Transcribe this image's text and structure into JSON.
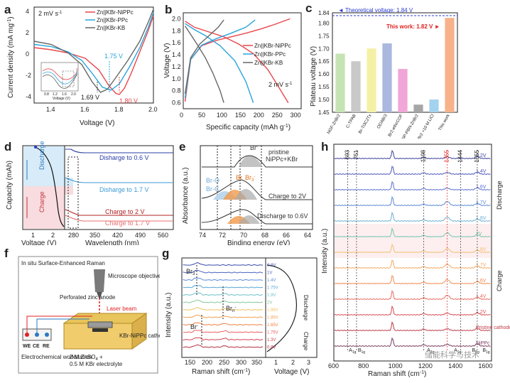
{
  "panels": {
    "a": {
      "label": "a",
      "scan_rate": "2 mV s",
      "scan_rate_exp": "-1",
      "legend": [
        "Zn||KBr-NiPPc",
        "Zn||KBr-PPc",
        "Zn||KBr-KB"
      ],
      "xlabel": "Voltage (V)",
      "ylabel": "Current density (mA mg",
      "ylabel_exp": "-1",
      "x_ticks": [
        "1.4",
        "1.6",
        "1.8",
        "2.0"
      ],
      "y_ticks": [
        "4",
        "2",
        "0",
        "-2",
        "-4"
      ],
      "peak_labels": [
        "1.69 V",
        "1.75 V",
        "1.80 V"
      ],
      "inset_x_ticks": [
        "0.8",
        "1.2",
        "1.6",
        "2.0"
      ],
      "inset_xlabel": "Voltage (V)"
    },
    "b": {
      "label": "b",
      "legend": [
        "Zn||KBr-NiPPc",
        "Zn||KBr-PPc",
        "Zn||KBr-KB"
      ],
      "scan_rate": "2 mV s",
      "scan_rate_exp": "-1",
      "xlabel": "Specific capacity (mAh g",
      "xlabel_exp": "-1",
      "ylabel": "Voltage (V)",
      "x_ticks": [
        "0",
        "50",
        "100",
        "150",
        "200",
        "250",
        "300"
      ],
      "y_ticks": [
        "2.0",
        "1.8",
        "1.6",
        "1.4",
        "1.2",
        "1.0",
        "0.8",
        "0.6"
      ]
    },
    "c": {
      "label": "c",
      "theoretical": "Theoretical voltage: 1.84 V",
      "this_work_label": "This work: 1.82 V",
      "ylabel": "Plateau voltage (V)",
      "y_ticks": [
        "1.84",
        "1.80",
        "1.75",
        "1.70",
        "1.65",
        "1.60",
        "1.55",
        "1.50",
        "1.45"
      ]
    },
    "d": {
      "label": "d",
      "ylabel": "Capacity (mAh)",
      "discharge": "Discharge",
      "charge": "Charge",
      "xlabel_left": "Voltage (V)",
      "xlabel_right": "Wavelength (nm)",
      "x_ticks_left": [
        "1",
        "2"
      ],
      "x_ticks_right": [
        "280",
        "350",
        "420",
        "490",
        "560"
      ],
      "curve_labels": [
        "Disharge to 0.6 V",
        "Disharge to 1.7 V",
        "Charge to 2 V",
        "Charge to 1.7 V"
      ]
    },
    "e": {
      "label": "e",
      "ylabel": "Absorbance (a.u.)",
      "xlabel": "Binding energy (eV)",
      "x_ticks": [
        "74",
        "72",
        "70",
        "68",
        "66",
        "64"
      ],
      "labels": [
        "Br",
        "pristine",
        "NiPPc+KBr",
        "Br-O",
        "Br-C",
        "Br",
        "Br",
        "Charge to 2V",
        "Discharge to 0.6V"
      ],
      "label_sub": [
        "",
        "",
        "",
        "",
        "",
        "",
        "3",
        "",
        ""
      ],
      "label_sup": [
        "-",
        "",
        "",
        "",
        "",
        "",
        "-",
        "",
        ""
      ]
    },
    "f": {
      "label": "f",
      "title": "In situ Surface-Enhanced Raman",
      "microscope": "Microscope objective",
      "perforated": "Perforated zinc anode",
      "laser": "Laser beam",
      "electrodes": [
        "WE",
        "CE",
        "RE"
      ],
      "workstation": "Electrochemical workstation",
      "cathode": "KBr-NiPPc cathode",
      "electrolyte_1": "2 M ZnSO",
      "electrolyte_1_sub": "4",
      "electrolyte_1_tail": " +",
      "electrolyte_2": "0.5 M KBr electrolyte"
    },
    "g": {
      "label": "g",
      "ylabel": "Intensity (a.u.)",
      "xlabel": "Raman shift (cm",
      "xlabel_exp": "-1",
      "xlabel_right": "Voltage (V)",
      "x_ticks": [
        "150",
        "200",
        "250",
        "300",
        "350"
      ],
      "x_ticks_right": [
        "1",
        "2",
        "3"
      ],
      "species": [
        "Br",
        "Br",
        "Br"
      ],
      "species_sub": [
        "3",
        "n",
        ""
      ],
      "species_sup": [
        "-",
        "-",
        "-"
      ],
      "voltages": [
        "0.8V",
        "1V",
        "1.4V",
        "1.75V",
        "1.9V",
        "2V",
        "1.95V",
        "1.85V",
        "1.65V",
        "1.75V",
        "1.3V",
        "0.8V"
      ],
      "discharge": "Discharge",
      "charge": "Charge"
    },
    "h": {
      "label": "h",
      "ylabel": "Intensity (a.u.)",
      "xlabel": "Raman shift (cm",
      "xlabel_exp": "-1",
      "x_ticks": [
        "600",
        "800",
        "1000",
        "1200",
        "1400",
        "1600"
      ],
      "peak_positions": [
        "693",
        "751",
        "1198",
        "1355",
        "1444",
        "1555"
      ],
      "curve_labels": [
        "1.2V",
        "1.4V",
        "1.6V",
        "1.7V",
        "1.8V",
        "2V",
        "1.8V",
        "1.7V",
        "1.6V",
        "1.4V",
        "1.2V",
        "Pristine cathode",
        "NiPPc"
      ],
      "discharge": "Discharge",
      "charge": "Charge",
      "modes": [
        "A",
        "B",
        "A",
        "A",
        "B",
        "B"
      ],
      "modes_sub": [
        "1g",
        "1g",
        "1g",
        "1g",
        "1g",
        "1g"
      ],
      "watermark": "储能科学与技术"
    }
  },
  "chart_data": [
    {
      "panel": "a",
      "type": "line",
      "title": "",
      "xlabel": "Voltage (V)",
      "ylabel": "Current density (mA mg-1)",
      "xlim": [
        1.3,
        2.0
      ],
      "ylim": [
        -4.6,
        4.4
      ],
      "series": [
        {
          "name": "Zn||KBr-NiPPc",
          "color": "#e8464b",
          "x": [
            1.3,
            1.4,
            1.5,
            1.6,
            1.68,
            1.74,
            1.78,
            1.8,
            1.83,
            1.87,
            1.92,
            1.97,
            2.0
          ],
          "y": [
            0.6,
            0.4,
            0.1,
            -0.4,
            -1.5,
            -3.0,
            -3.7,
            -3.8,
            -3.2,
            -1.8,
            0.2,
            2.2,
            3.6
          ]
        },
        {
          "name": "Zn||KBr-PPc",
          "color": "#2aa4dc",
          "x": [
            1.3,
            1.4,
            1.5,
            1.58,
            1.64,
            1.7,
            1.75,
            1.8,
            1.86,
            1.92,
            1.97,
            2.0
          ],
          "y": [
            0.9,
            0.7,
            0.2,
            -0.6,
            -1.8,
            -3.1,
            -3.4,
            -2.8,
            -1.2,
            0.6,
            2.5,
            3.9
          ]
        },
        {
          "name": "Zn||KBr-KB",
          "color": "#666666",
          "x": [
            1.3,
            1.4,
            1.5,
            1.58,
            1.64,
            1.69,
            1.73,
            1.78,
            1.85,
            1.92,
            1.97,
            2.0
          ],
          "y": [
            1.2,
            0.9,
            0.1,
            -1.0,
            -2.6,
            -3.6,
            -3.3,
            -2.2,
            -0.6,
            1.2,
            3.0,
            4.2
          ]
        }
      ],
      "annotations": [
        {
          "x": 1.69,
          "label": "1.69 V"
        },
        {
          "x": 1.75,
          "label": "1.75 V"
        },
        {
          "x": 1.8,
          "label": "1.80 V"
        }
      ]
    },
    {
      "panel": "b",
      "type": "line",
      "xlabel": "Specific capacity (mAh g-1)",
      "ylabel": "Voltage (V)",
      "xlim": [
        0,
        320
      ],
      "ylim": [
        0.5,
        2.1
      ],
      "series": [
        {
          "name": "Zn||KBr-NiPPc charge",
          "color": "#e8464b",
          "x": [
            5,
            20,
            50,
            90,
            130,
            170,
            210,
            250,
            290
          ],
          "y": [
            0.62,
            1.32,
            1.55,
            1.64,
            1.7,
            1.76,
            1.83,
            1.91,
            2.0
          ]
        },
        {
          "name": "Zn||KBr-NiPPc discharge",
          "color": "#e8464b",
          "x": [
            5,
            30,
            70,
            110,
            150,
            190,
            230,
            260,
            285
          ],
          "y": [
            1.96,
            1.86,
            1.78,
            1.7,
            1.58,
            1.42,
            1.15,
            0.85,
            0.6
          ]
        },
        {
          "name": "Zn||KBr-PPc charge",
          "color": "#2aa4dc",
          "x": [
            5,
            20,
            50,
            90,
            130,
            170,
            195
          ],
          "y": [
            0.68,
            1.32,
            1.56,
            1.67,
            1.76,
            1.86,
            1.98
          ]
        },
        {
          "name": "Zn||KBr-PPc discharge",
          "color": "#2aa4dc",
          "x": [
            5,
            30,
            60,
            100,
            140,
            170,
            190
          ],
          "y": [
            1.92,
            1.82,
            1.72,
            1.55,
            1.3,
            0.95,
            0.6
          ]
        },
        {
          "name": "Zn||KBr-KB charge",
          "color": "#666666",
          "x": [
            5,
            20,
            45,
            70,
            95,
            110
          ],
          "y": [
            0.75,
            1.35,
            1.58,
            1.72,
            1.86,
            1.98
          ]
        },
        {
          "name": "Zn||KBr-KB discharge",
          "color": "#666666",
          "x": [
            5,
            20,
            40,
            60,
            80,
            100,
            110
          ],
          "y": [
            1.88,
            1.74,
            1.55,
            1.35,
            1.1,
            0.8,
            0.6
          ]
        }
      ]
    },
    {
      "panel": "c",
      "type": "bar",
      "ylabel": "Plateau voltage (V)",
      "ylim": [
        1.45,
        1.84
      ],
      "categories": [
        "NGF-ZnBr2",
        "C-TPAB",
        "Br-Ti3C2Tx",
        "ODABr3",
        "Br2-ethcCOF",
        "SP-PBN-ZnBr2",
        "C-20 M ZnBr2 +10 M LiCl",
        "This work"
      ],
      "values": [
        1.68,
        1.65,
        1.7,
        1.72,
        1.62,
        1.48,
        1.5,
        1.82
      ],
      "colors": [
        "#c6e3b4",
        "#c9c9c9",
        "#f4f1a6",
        "#aab8df",
        "#f0a6d7",
        "#a6a6a6",
        "#a3d3ee",
        "#f7b28c"
      ],
      "reference_line": {
        "value": 1.84,
        "label": "Theoretical voltage: 1.84 V"
      }
    },
    {
      "panel": "h",
      "type": "line",
      "xlabel": "Raman shift (cm-1)",
      "ylabel": "Intensity (a.u.)",
      "xlim": [
        600,
        1650
      ],
      "peaks": [
        693,
        751,
        1198,
        1355,
        1444,
        1555
      ],
      "series_labels": [
        "1.2V",
        "1.4V",
        "1.6V",
        "1.7V",
        "1.8V",
        "2V",
        "1.8V",
        "1.7V",
        "1.6V",
        "1.4V",
        "1.2V",
        "Pristine cathode",
        "NiPPc"
      ]
    }
  ]
}
